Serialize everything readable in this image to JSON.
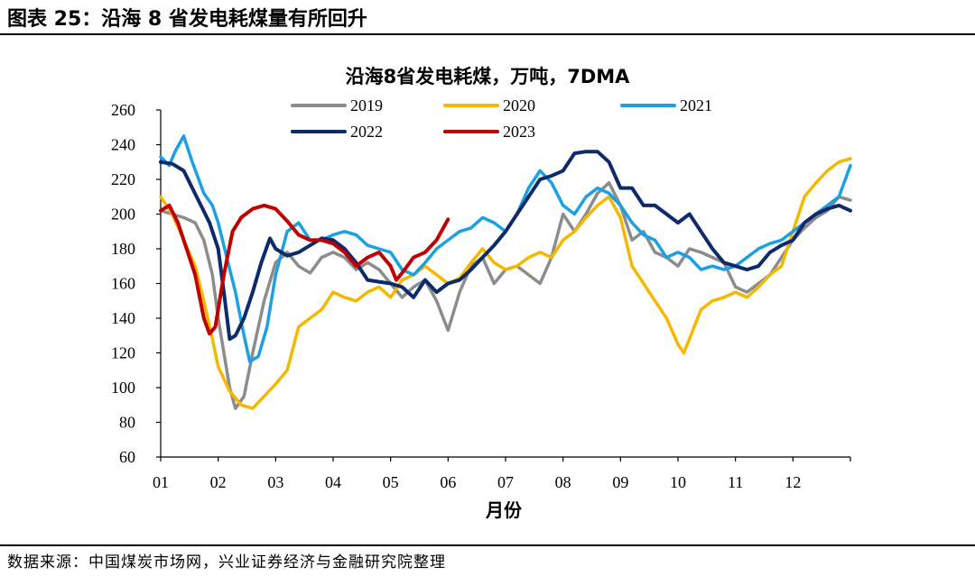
{
  "figure_title": "图表 25：沿海 8 省发电耗煤量有所回升",
  "source": "数据来源：中国煤炭市场网，兴业证券经济与金融研究院整理",
  "chart_data": {
    "type": "line",
    "title": "沿海8省发电耗煤，万吨，7DMA",
    "xlabel": "月份",
    "ylabel": "",
    "ylim": [
      60,
      260
    ],
    "yticks": [
      "60",
      "80",
      "100",
      "120",
      "140",
      "160",
      "180",
      "200",
      "220",
      "240",
      "260"
    ],
    "xlim": [
      1,
      13
    ],
    "xticks": [
      {
        "x": 1,
        "label": "01"
      },
      {
        "x": 2,
        "label": "02"
      },
      {
        "x": 3,
        "label": "03"
      },
      {
        "x": 4,
        "label": "04"
      },
      {
        "x": 5,
        "label": "05"
      },
      {
        "x": 6,
        "label": "06"
      },
      {
        "x": 7,
        "label": "07"
      },
      {
        "x": 8,
        "label": "08"
      },
      {
        "x": 9,
        "label": "09"
      },
      {
        "x": 10,
        "label": "10"
      },
      {
        "x": 11,
        "label": "11"
      },
      {
        "x": 12,
        "label": "12"
      }
    ],
    "grid": false,
    "legend": "top",
    "series": [
      {
        "name": "2019",
        "color": "#8c8c8c",
        "x": [
          1.0,
          1.2,
          1.4,
          1.6,
          1.75,
          1.9,
          2.0,
          2.1,
          2.2,
          2.3,
          2.45,
          2.6,
          2.8,
          3.0,
          3.2,
          3.4,
          3.6,
          3.8,
          4.0,
          4.2,
          4.4,
          4.6,
          4.8,
          5.0,
          5.2,
          5.4,
          5.6,
          5.8,
          6.0,
          6.2,
          6.4,
          6.6,
          6.8,
          7.0,
          7.2,
          7.4,
          7.6,
          7.8,
          8.0,
          8.2,
          8.4,
          8.6,
          8.8,
          9.0,
          9.2,
          9.4,
          9.6,
          9.8,
          10.0,
          10.2,
          10.4,
          10.6,
          10.8,
          11.0,
          11.2,
          11.4,
          11.6,
          11.8,
          12.0,
          12.2,
          12.4,
          12.6,
          12.8,
          13.0
        ],
        "y": [
          202,
          200,
          198,
          195,
          185,
          165,
          140,
          120,
          100,
          88,
          95,
          120,
          150,
          172,
          178,
          170,
          166,
          175,
          178,
          175,
          168,
          172,
          168,
          160,
          152,
          158,
          162,
          150,
          133,
          155,
          170,
          175,
          160,
          168,
          170,
          165,
          160,
          175,
          200,
          190,
          200,
          212,
          218,
          205,
          185,
          190,
          178,
          175,
          170,
          180,
          178,
          175,
          172,
          158,
          155,
          160,
          165,
          175,
          185,
          192,
          198,
          202,
          210,
          208
        ]
      },
      {
        "name": "2020",
        "color": "#f5b800",
        "x": [
          1.0,
          1.2,
          1.4,
          1.6,
          1.75,
          1.9,
          2.0,
          2.2,
          2.4,
          2.6,
          2.8,
          3.0,
          3.2,
          3.4,
          3.6,
          3.8,
          4.0,
          4.2,
          4.4,
          4.6,
          4.8,
          5.0,
          5.2,
          5.4,
          5.6,
          5.8,
          6.0,
          6.2,
          6.4,
          6.6,
          6.8,
          7.0,
          7.2,
          7.4,
          7.6,
          7.8,
          8.0,
          8.2,
          8.4,
          8.6,
          8.8,
          9.0,
          9.2,
          9.4,
          9.6,
          9.8,
          10.0,
          10.1,
          10.2,
          10.4,
          10.6,
          10.8,
          11.0,
          11.2,
          11.4,
          11.6,
          11.8,
          12.0,
          12.2,
          12.4,
          12.6,
          12.8,
          13.0
        ],
        "y": [
          210,
          200,
          185,
          170,
          150,
          128,
          112,
          98,
          90,
          88,
          95,
          102,
          110,
          135,
          140,
          145,
          155,
          152,
          150,
          155,
          158,
          152,
          162,
          165,
          170,
          165,
          160,
          163,
          172,
          180,
          172,
          168,
          170,
          175,
          178,
          175,
          185,
          190,
          198,
          205,
          210,
          198,
          170,
          160,
          150,
          140,
          125,
          120,
          128,
          145,
          150,
          152,
          155,
          152,
          158,
          165,
          170,
          190,
          210,
          218,
          225,
          230,
          232
        ]
      },
      {
        "name": "2021",
        "color": "#1ba1e2",
        "x": [
          1.0,
          1.15,
          1.25,
          1.4,
          1.55,
          1.75,
          1.9,
          2.0,
          2.15,
          2.3,
          2.45,
          2.55,
          2.7,
          2.85,
          3.0,
          3.2,
          3.4,
          3.6,
          3.8,
          4.0,
          4.2,
          4.4,
          4.6,
          4.8,
          5.0,
          5.2,
          5.4,
          5.6,
          5.8,
          6.0,
          6.2,
          6.4,
          6.6,
          6.8,
          7.0,
          7.2,
          7.4,
          7.6,
          7.8,
          8.0,
          8.2,
          8.4,
          8.6,
          8.8,
          9.0,
          9.2,
          9.4,
          9.6,
          9.8,
          10.0,
          10.2,
          10.4,
          10.6,
          10.8,
          11.0,
          11.2,
          11.4,
          11.6,
          11.8,
          12.0,
          12.2,
          12.4,
          12.6,
          12.8,
          13.0
        ],
        "y": [
          233,
          228,
          236,
          245,
          230,
          212,
          205,
          195,
          175,
          155,
          130,
          115,
          118,
          135,
          165,
          190,
          195,
          185,
          185,
          188,
          190,
          188,
          182,
          180,
          178,
          168,
          165,
          172,
          180,
          185,
          190,
          192,
          198,
          195,
          190,
          200,
          215,
          225,
          218,
          205,
          200,
          210,
          215,
          212,
          205,
          195,
          188,
          185,
          175,
          178,
          175,
          168,
          170,
          168,
          170,
          175,
          180,
          183,
          185,
          190,
          195,
          200,
          205,
          210,
          228
        ]
      },
      {
        "name": "2022",
        "color": "#0d2a6b",
        "x": [
          1.0,
          1.2,
          1.4,
          1.55,
          1.7,
          1.85,
          2.0,
          2.1,
          2.2,
          2.3,
          2.45,
          2.6,
          2.75,
          2.9,
          3.0,
          3.2,
          3.4,
          3.6,
          3.8,
          4.0,
          4.2,
          4.4,
          4.6,
          4.8,
          5.0,
          5.2,
          5.4,
          5.6,
          5.8,
          6.0,
          6.2,
          6.4,
          6.6,
          6.8,
          7.0,
          7.2,
          7.4,
          7.6,
          7.8,
          8.0,
          8.2,
          8.4,
          8.6,
          8.8,
          9.0,
          9.2,
          9.4,
          9.6,
          9.8,
          10.0,
          10.2,
          10.4,
          10.6,
          10.8,
          11.0,
          11.2,
          11.4,
          11.6,
          11.8,
          12.0,
          12.2,
          12.4,
          12.6,
          12.8,
          13.0
        ],
        "y": [
          230,
          229,
          225,
          215,
          205,
          195,
          180,
          155,
          128,
          130,
          140,
          155,
          172,
          186,
          180,
          176,
          178,
          182,
          186,
          185,
          180,
          172,
          162,
          161,
          160,
          158,
          152,
          162,
          155,
          160,
          162,
          168,
          175,
          182,
          190,
          200,
          210,
          220,
          222,
          225,
          235,
          236,
          236,
          230,
          215,
          215,
          205,
          205,
          200,
          195,
          200,
          190,
          180,
          172,
          170,
          168,
          170,
          178,
          182,
          185,
          195,
          200,
          203,
          205,
          202
        ]
      },
      {
        "name": "2023",
        "color": "#c00000",
        "x": [
          1.0,
          1.15,
          1.3,
          1.45,
          1.6,
          1.75,
          1.85,
          1.95,
          2.1,
          2.25,
          2.4,
          2.6,
          2.8,
          3.0,
          3.2,
          3.4,
          3.6,
          3.8,
          4.0,
          4.2,
          4.4,
          4.6,
          4.8,
          5.0,
          5.1,
          5.2,
          5.4,
          5.6,
          5.8,
          6.0
        ],
        "y": [
          202,
          205,
          195,
          180,
          165,
          140,
          131,
          135,
          165,
          190,
          198,
          203,
          205,
          203,
          196,
          188,
          185,
          185,
          183,
          178,
          170,
          175,
          178,
          170,
          162,
          166,
          175,
          178,
          185,
          197
        ]
      }
    ]
  }
}
